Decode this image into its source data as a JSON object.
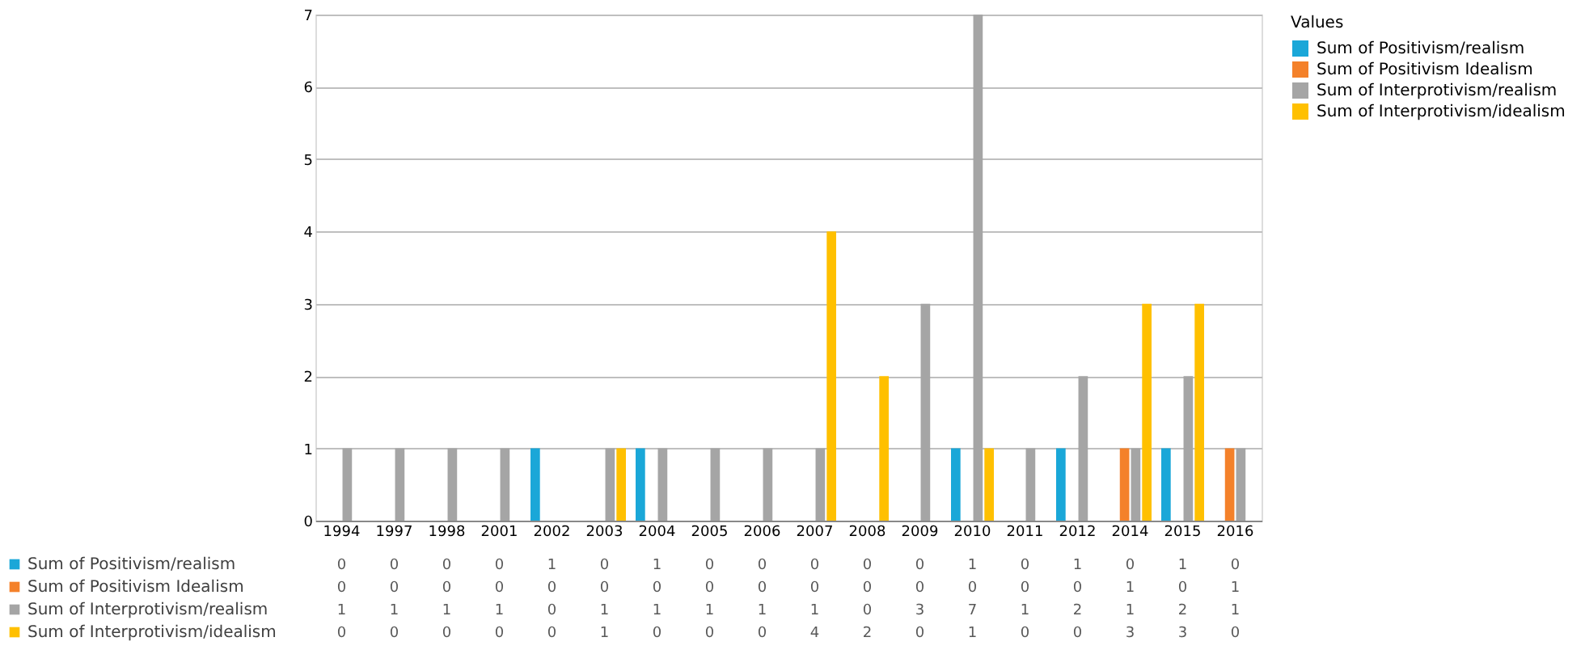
{
  "chart_data": {
    "type": "bar",
    "categories": [
      "1994",
      "1997",
      "1998",
      "2001",
      "2002",
      "2003",
      "2004",
      "2005",
      "2006",
      "2007",
      "2008",
      "2009",
      "2010",
      "2011",
      "2012",
      "2014",
      "2015",
      "2016"
    ],
    "series": [
      {
        "name": "Sum of Positivism/realism",
        "color": "#1aa7d8",
        "values": [
          0,
          0,
          0,
          0,
          1,
          0,
          1,
          0,
          0,
          0,
          0,
          0,
          1,
          0,
          1,
          0,
          1,
          0
        ]
      },
      {
        "name": "Sum of Positivism Idealism",
        "color": "#f4812a",
        "values": [
          0,
          0,
          0,
          0,
          0,
          0,
          0,
          0,
          0,
          0,
          0,
          0,
          0,
          0,
          0,
          1,
          0,
          1
        ]
      },
      {
        "name": "Sum of Interprotivism/realism",
        "color": "#a5a5a5",
        "values": [
          1,
          1,
          1,
          1,
          0,
          1,
          1,
          1,
          1,
          1,
          0,
          3,
          7,
          1,
          2,
          1,
          2,
          1
        ]
      },
      {
        "name": "Sum of Interprotivism/idealism",
        "color": "#ffc000",
        "values": [
          0,
          0,
          0,
          0,
          0,
          1,
          0,
          0,
          0,
          4,
          2,
          0,
          1,
          0,
          0,
          3,
          3,
          0
        ]
      }
    ],
    "legend_title": "Values",
    "legend": "right",
    "ylim": [
      0,
      7
    ],
    "yticks": [
      0,
      1,
      2,
      3,
      4,
      5,
      6,
      7
    ],
    "grid": "y",
    "data_labels": true
  }
}
